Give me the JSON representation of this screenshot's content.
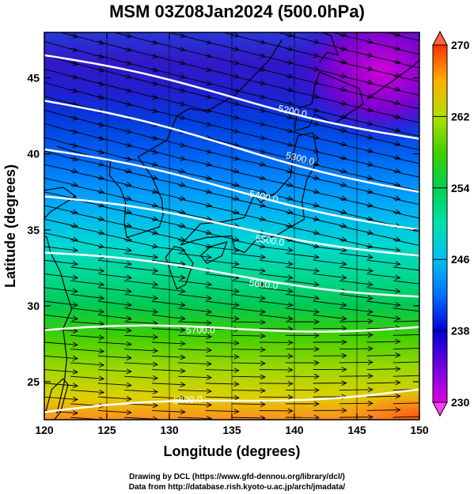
{
  "title": "MSM 03Z08Jan2024 (500.0hPa)",
  "map": {
    "lon_range": [
      120,
      150
    ],
    "lat_range": [
      22.5,
      48
    ],
    "x_ticks": [
      "120",
      "125",
      "130",
      "135",
      "140",
      "145",
      "150"
    ],
    "y_ticks": [
      "25",
      "30",
      "35",
      "40",
      "45"
    ],
    "xlabel": "Longitude (degrees)",
    "ylabel": "Latitude  (degrees)",
    "contours": [
      {
        "value": 5200,
        "label": "5200.0",
        "lat_west": 46.5,
        "lat_east": 41.0,
        "label_lon": 139.8,
        "label_lat": 42.6
      },
      {
        "value": 5300,
        "label": "5300.0",
        "lat_west": 43.5,
        "lat_east": 37.5,
        "label_lon": 140.4,
        "label_lat": 39.5
      },
      {
        "value": 5400,
        "label": "5400.0",
        "lat_west": 40.3,
        "lat_east": 35.0,
        "label_lon": 137.5,
        "label_lat": 37.0
      },
      {
        "value": 5500,
        "label": "5500.0",
        "lat_west": 37.2,
        "lat_east": 33.3,
        "label_lon": 138.0,
        "label_lat": 34.1
      },
      {
        "value": 5600,
        "label": "5600.0",
        "lat_west": 33.5,
        "lat_east": 30.6,
        "label_lon": 137.5,
        "label_lat": 31.2
      },
      {
        "value": 5700,
        "label": "5700.0",
        "lat_west": 28.4,
        "lat_east": 28.6,
        "label_lon": 132.5,
        "label_lat": 28.2
      },
      {
        "value": 5800,
        "label": "5800.0",
        "lat_west": 23.0,
        "lat_east": 24.5,
        "label_lon": 131.5,
        "label_lat": 23.6
      }
    ]
  },
  "colorbar": {
    "min": 230,
    "max": 270,
    "tick_labels": [
      "270",
      "262",
      "254",
      "246",
      "238",
      "230"
    ]
  },
  "credits": [
    "Drawing by DCL (https://www.gfd-dennou.org/library/dcl/)",
    "Data from http://database.rish.kyoto-u.ac.jp/arch/jmadata/"
  ]
}
